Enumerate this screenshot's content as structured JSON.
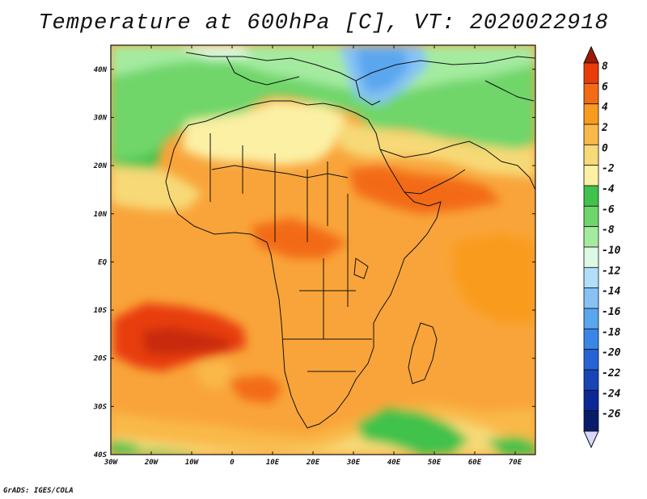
{
  "title": "Temperature at 600hPa [C], VT: 2020022918",
  "footer": "GrADS: IGES/COLA",
  "map": {
    "lon_range": [
      -30,
      75
    ],
    "lat_range": [
      -40,
      45
    ],
    "lon_ticks": [
      {
        "lon": -30,
        "label": "30W"
      },
      {
        "lon": -20,
        "label": "20W"
      },
      {
        "lon": -10,
        "label": "10W"
      },
      {
        "lon": 0,
        "label": "0"
      },
      {
        "lon": 10,
        "label": "10E"
      },
      {
        "lon": 20,
        "label": "20E"
      },
      {
        "lon": 30,
        "label": "30E"
      },
      {
        "lon": 40,
        "label": "40E"
      },
      {
        "lon": 50,
        "label": "50E"
      },
      {
        "lon": 60,
        "label": "60E"
      },
      {
        "lon": 70,
        "label": "70E"
      }
    ],
    "lat_ticks": [
      {
        "lat": 40,
        "label": "40N"
      },
      {
        "lat": 30,
        "label": "30N"
      },
      {
        "lat": 20,
        "label": "20N"
      },
      {
        "lat": 10,
        "label": "10N"
      },
      {
        "lat": 0,
        "label": "EQ"
      },
      {
        "lat": -10,
        "label": "10S"
      },
      {
        "lat": -20,
        "label": "20S"
      },
      {
        "lat": -30,
        "label": "30S"
      },
      {
        "lat": -40,
        "label": "40S"
      }
    ]
  },
  "colorbar": {
    "labels": [
      "8",
      "6",
      "4",
      "2",
      "0",
      "-2",
      "-4",
      "-6",
      "-8",
      "-10",
      "-12",
      "-14",
      "-16",
      "-18",
      "-20",
      "-22",
      "-24",
      "-26"
    ],
    "colors": [
      "#a01806",
      "#e83d0a",
      "#f36b14",
      "#f99b1f",
      "#f9b94a",
      "#f7d977",
      "#fbf0a4",
      "#40c24c",
      "#6fd66b",
      "#a4eba0",
      "#ddf9e3",
      "#b1defa",
      "#86c2f6",
      "#5aa6ef",
      "#3a86e7",
      "#2763d4",
      "#1844b6",
      "#0b2894",
      "#081c6a",
      "#d8d8fa"
    ]
  },
  "legend_values": {
    "color_levels_desc": [
      "8",
      "6",
      "4",
      "2",
      "0",
      "-2",
      "-4",
      "-6",
      "-8",
      "-10",
      "-12",
      "-14",
      "-16",
      "-18",
      "-20",
      "-22",
      "-24",
      "-26"
    ]
  }
}
